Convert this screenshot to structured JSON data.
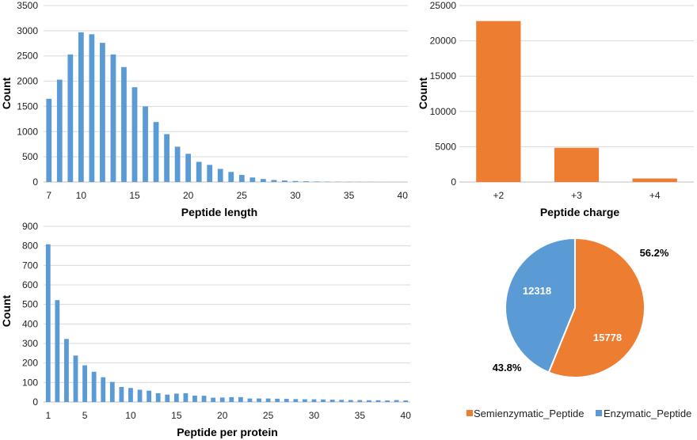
{
  "colors": {
    "blue": "#5b9bd5",
    "orange": "#ed7d31",
    "grid": "#d9d9d9",
    "axis": "#bfbfbf"
  },
  "chart_data": [
    {
      "id": "length",
      "type": "bar",
      "xlabel": "Peptide length",
      "ylabel": "Count",
      "x": [
        7,
        8,
        9,
        10,
        11,
        12,
        13,
        14,
        15,
        16,
        17,
        18,
        19,
        20,
        21,
        22,
        23,
        24,
        25,
        26,
        27,
        28,
        29,
        30,
        31,
        32,
        33,
        34,
        35,
        36,
        37,
        38,
        39,
        40
      ],
      "values": [
        1650,
        2030,
        2530,
        2970,
        2930,
        2760,
        2530,
        2280,
        1880,
        1500,
        1190,
        950,
        700,
        560,
        400,
        340,
        260,
        200,
        140,
        90,
        60,
        40,
        30,
        20,
        15,
        10,
        8,
        5,
        4,
        3,
        2,
        2,
        1,
        1
      ],
      "xticks": [
        "7",
        "10",
        "15",
        "20",
        "25",
        "30",
        "35",
        "40"
      ],
      "yticks": [
        "0",
        "500",
        "1000",
        "1500",
        "2000",
        "2500",
        "3000",
        "3500"
      ],
      "ylim": [
        0,
        3500
      ],
      "color": "#5b9bd5"
    },
    {
      "id": "charge",
      "type": "bar",
      "xlabel": "Peptide charge",
      "ylabel": "Count",
      "categories": [
        "+2",
        "+3",
        "+4"
      ],
      "values": [
        22800,
        4850,
        500
      ],
      "yticks": [
        "0",
        "5000",
        "10000",
        "15000",
        "20000",
        "25000"
      ],
      "ylim": [
        0,
        25000
      ],
      "color": "#ed7d31"
    },
    {
      "id": "perprotein",
      "type": "bar",
      "xlabel": "Peptide per protein",
      "ylabel": "Count",
      "x": [
        1,
        2,
        3,
        4,
        5,
        6,
        7,
        8,
        9,
        10,
        11,
        12,
        13,
        14,
        15,
        16,
        17,
        18,
        19,
        20,
        21,
        22,
        23,
        24,
        25,
        26,
        27,
        28,
        29,
        30,
        31,
        32,
        33,
        34,
        35,
        36,
        37,
        38,
        39,
        40
      ],
      "values": [
        808,
        522,
        323,
        238,
        188,
        155,
        127,
        103,
        77,
        72,
        63,
        58,
        45,
        38,
        43,
        45,
        33,
        32,
        22,
        23,
        25,
        25,
        18,
        18,
        18,
        17,
        16,
        15,
        14,
        14,
        13,
        12,
        11,
        10,
        10,
        9,
        9,
        8,
        10,
        8
      ],
      "xticks": [
        "1",
        "5",
        "10",
        "15",
        "20",
        "25",
        "30",
        "35",
        "40"
      ],
      "yticks": [
        "0",
        "100",
        "200",
        "300",
        "400",
        "500",
        "600",
        "700",
        "800",
        "900"
      ],
      "ylim": [
        0,
        900
      ],
      "color": "#5b9bd5"
    },
    {
      "id": "pie",
      "type": "pie",
      "labels": [
        "Semienzymatic_Peptide",
        "Enzymatic_Peptide"
      ],
      "values": [
        15778,
        12318
      ],
      "value_labels": [
        "15778",
        "12318"
      ],
      "percent_labels": [
        "56.2%",
        "43.8%"
      ],
      "colors": [
        "#ed7d31",
        "#5b9bd5"
      ]
    }
  ]
}
